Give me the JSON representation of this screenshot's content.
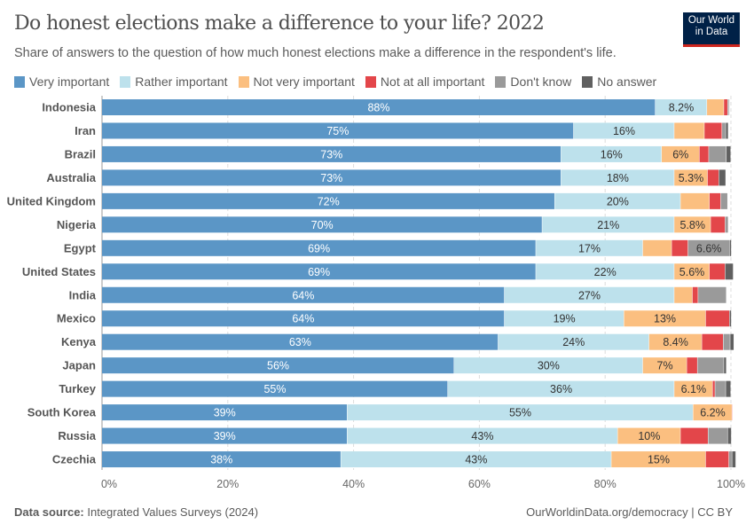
{
  "header": {
    "title": "Do honest elections make a difference to your life? 2022",
    "subtitle": "Share of answers to the question of how much honest elections make a difference in the respondent's life.",
    "logo_text": "Our World in Data"
  },
  "footer": {
    "source_label": "Data source:",
    "source": "Integrated Values Surveys (2024)",
    "link": "OurWorldinData.org/democracy | CC BY"
  },
  "chart_data": {
    "type": "bar",
    "orientation": "horizontal",
    "stacked": true,
    "title": "Do honest elections make a difference to your life? 2022",
    "xlim": [
      0,
      100
    ],
    "x_ticks": [
      "0%",
      "20%",
      "40%",
      "60%",
      "80%",
      "100%"
    ],
    "grid": "vertical-dashed",
    "legend_placement": "top",
    "categories": [
      "Indonesia",
      "Iran",
      "Brazil",
      "Australia",
      "United Kingdom",
      "Nigeria",
      "Egypt",
      "United States",
      "India",
      "Mexico",
      "Kenya",
      "Japan",
      "Turkey",
      "South Korea",
      "Russia",
      "Czechia"
    ],
    "series": [
      {
        "name": "Very important",
        "color": "#5b96c6",
        "values": [
          88,
          75,
          73,
          73,
          72,
          70,
          69,
          69,
          64,
          64,
          63,
          56,
          55,
          39,
          39,
          38
        ]
      },
      {
        "name": "Rather important",
        "color": "#bde1ec",
        "values": [
          8.2,
          16,
          16,
          18,
          20,
          21,
          17,
          22,
          27,
          19,
          24,
          30,
          36,
          55,
          43,
          43
        ]
      },
      {
        "name": "Not very important",
        "color": "#fbbf80",
        "values": [
          2.7,
          4.8,
          6,
          5.3,
          4.6,
          5.8,
          4.6,
          5.6,
          2.9,
          13,
          8.4,
          7,
          6.1,
          6.2,
          10,
          15
        ]
      },
      {
        "name": "Not at all important",
        "color": "#e3464a",
        "values": [
          0.6,
          2.8,
          1.5,
          1.8,
          1.8,
          2.3,
          2.6,
          2.5,
          0.9,
          3.8,
          3.4,
          1.7,
          0.4,
          0.1,
          4.4,
          3.7
        ]
      },
      {
        "name": "Don't know",
        "color": "#9a9a9a",
        "values": [
          0.2,
          0.6,
          2.8,
          0,
          1.1,
          0.5,
          6.6,
          0,
          4.5,
          0,
          1.1,
          4.2,
          1.7,
          0,
          3.1,
          0.5
        ]
      },
      {
        "name": "No answer",
        "color": "#606060",
        "values": [
          0.1,
          0.4,
          0.7,
          1.1,
          0,
          0,
          0.3,
          1.3,
          0,
          0.3,
          0.6,
          0.4,
          0.8,
          0,
          0.6,
          0.6
        ]
      }
    ],
    "data_labels": {
      "0": [
        "88%",
        "75%",
        "73%",
        "73%",
        "72%",
        "70%",
        "69%",
        "69%",
        "64%",
        "64%",
        "63%",
        "56%",
        "55%",
        "39%",
        "39%",
        "38%"
      ],
      "1": [
        "8.2%",
        "16%",
        "16%",
        "18%",
        "20%",
        "21%",
        "17%",
        "22%",
        "27%",
        "19%",
        "24%",
        "30%",
        "36%",
        "55%",
        "43%",
        "43%"
      ],
      "2": [
        "",
        "",
        "6%",
        "5.3%",
        "",
        "5.8%",
        "",
        "5.6%",
        "",
        "13%",
        "8.4%",
        "7%",
        "6.1%",
        "6.2%",
        "10%",
        "15%"
      ],
      "4": [
        "",
        "",
        "",
        "",
        "",
        "",
        "6.6%",
        "",
        "",
        "",
        "",
        "",
        "",
        "",
        "",
        ""
      ]
    }
  }
}
